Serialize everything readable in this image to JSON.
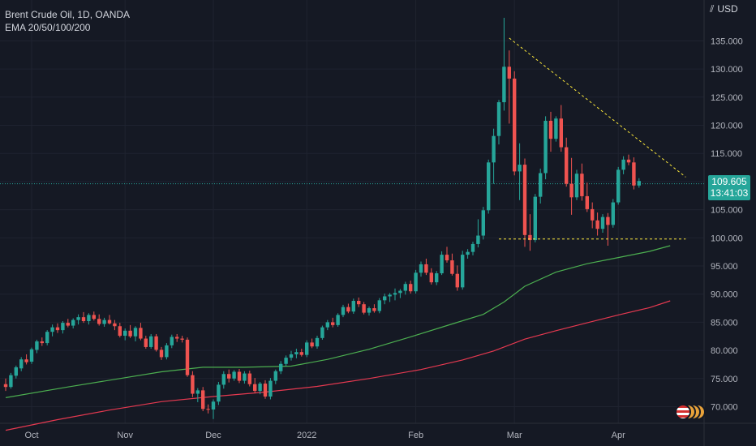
{
  "legend": {
    "symbol_line": "Brent Crude Oil, 1D, OANDA",
    "indicator_line": "EMA 20/50/100/200"
  },
  "currency_label": "USD",
  "price_tag": {
    "price": "109.605",
    "countdown": "13:41:03"
  },
  "colors": {
    "background": "#151924",
    "up": "#26a69a",
    "down": "#ef5350",
    "ema_green": "#4caf50",
    "ema_red": "#e53950",
    "trendline": "#ffeb3b",
    "grid": "#1f2330",
    "text": "#b2b5be"
  },
  "chart_data": {
    "type": "candlestick",
    "title": "Brent Crude Oil, 1D, OANDA",
    "ylim": [
      67.5,
      140
    ],
    "y_ticks": [
      "70.000",
      "75.000",
      "80.000",
      "85.000",
      "90.000",
      "95.000",
      "100.000",
      "105.000",
      "110.000",
      "115.000",
      "120.000",
      "125.000",
      "130.000",
      "135.000"
    ],
    "x_ticks": [
      "Oct",
      "Nov",
      "Dec",
      "2022",
      "Feb",
      "Mar",
      "Apr"
    ],
    "x_tick_index": [
      5,
      23,
      40,
      58,
      79,
      98,
      118
    ],
    "ohlc": [
      [
        74.0,
        75.0,
        72.8,
        73.5
      ],
      [
        73.5,
        76.0,
        73.2,
        75.6
      ],
      [
        75.5,
        77.3,
        75.0,
        77.0
      ],
      [
        76.8,
        78.8,
        76.3,
        78.4
      ],
      [
        78.4,
        79.3,
        77.5,
        77.9
      ],
      [
        78.0,
        80.5,
        77.6,
        80.2
      ],
      [
        80.1,
        81.9,
        79.5,
        81.6
      ],
      [
        81.6,
        82.3,
        80.8,
        81.3
      ],
      [
        81.3,
        83.6,
        80.9,
        83.3
      ],
      [
        83.3,
        84.6,
        82.5,
        84.1
      ],
      [
        84.1,
        84.8,
        83.1,
        83.6
      ],
      [
        83.6,
        85.2,
        83.0,
        84.9
      ],
      [
        84.9,
        85.6,
        84.1,
        84.4
      ],
      [
        84.4,
        85.7,
        83.9,
        85.4
      ],
      [
        85.4,
        86.4,
        84.6,
        85.9
      ],
      [
        85.9,
        86.8,
        84.9,
        85.2
      ],
      [
        85.2,
        86.6,
        84.6,
        86.3
      ],
      [
        86.3,
        86.9,
        85.3,
        85.6
      ],
      [
        85.6,
        86.4,
        84.4,
        84.7
      ],
      [
        84.7,
        85.8,
        84.2,
        85.4
      ],
      [
        85.4,
        86.3,
        84.6,
        84.8
      ],
      [
        84.8,
        85.4,
        83.6,
        84.3
      ],
      [
        84.3,
        84.9,
        82.3,
        82.6
      ],
      [
        82.6,
        83.9,
        81.8,
        83.5
      ],
      [
        83.5,
        84.5,
        82.2,
        82.5
      ],
      [
        82.5,
        84.3,
        81.6,
        84.0
      ],
      [
        84.0,
        84.9,
        81.8,
        82.1
      ],
      [
        82.1,
        82.6,
        80.3,
        80.6
      ],
      [
        80.6,
        82.9,
        80.3,
        82.5
      ],
      [
        82.5,
        82.9,
        79.8,
        80.1
      ],
      [
        80.1,
        80.6,
        78.3,
        78.8
      ],
      [
        78.8,
        81.3,
        78.4,
        80.9
      ],
      [
        80.9,
        82.8,
        80.4,
        82.4
      ],
      [
        82.4,
        82.9,
        81.5,
        82.1
      ],
      [
        82.1,
        82.6,
        81.4,
        81.9
      ],
      [
        81.9,
        82.3,
        75.3,
        75.6
      ],
      [
        75.6,
        76.3,
        71.7,
        72.3
      ],
      [
        72.3,
        73.3,
        70.8,
        72.9
      ],
      [
        72.9,
        73.5,
        69.2,
        69.6
      ],
      [
        69.6,
        70.4,
        68.8,
        69.5
      ],
      [
        69.5,
        71.3,
        67.8,
        70.9
      ],
      [
        70.9,
        74.4,
        70.3,
        73.9
      ],
      [
        73.9,
        76.3,
        73.2,
        75.8
      ],
      [
        75.8,
        76.6,
        74.3,
        75.0
      ],
      [
        75.0,
        76.5,
        74.6,
        76.2
      ],
      [
        76.2,
        76.7,
        74.2,
        74.6
      ],
      [
        74.6,
        76.3,
        74.1,
        75.9
      ],
      [
        75.9,
        76.4,
        73.6,
        74.0
      ],
      [
        74.0,
        75.1,
        72.4,
        72.8
      ],
      [
        72.8,
        74.4,
        72.2,
        74.1
      ],
      [
        74.1,
        74.7,
        71.4,
        71.8
      ],
      [
        71.8,
        75.1,
        71.3,
        74.6
      ],
      [
        74.6,
        76.6,
        74.0,
        76.3
      ],
      [
        76.3,
        78.1,
        75.8,
        77.6
      ],
      [
        77.6,
        79.1,
        77.2,
        78.7
      ],
      [
        78.7,
        79.9,
        78.2,
        79.3
      ],
      [
        79.3,
        80.3,
        78.6,
        79.7
      ],
      [
        79.7,
        80.3,
        78.9,
        79.2
      ],
      [
        79.2,
        81.8,
        78.8,
        81.4
      ],
      [
        81.4,
        82.1,
        80.4,
        80.7
      ],
      [
        80.7,
        82.6,
        80.3,
        82.2
      ],
      [
        82.2,
        84.4,
        81.9,
        84.1
      ],
      [
        84.1,
        85.4,
        83.6,
        85.0
      ],
      [
        85.0,
        85.8,
        84.1,
        84.5
      ],
      [
        84.5,
        86.6,
        84.2,
        86.3
      ],
      [
        86.3,
        88.1,
        85.9,
        87.7
      ],
      [
        87.7,
        88.3,
        86.6,
        86.9
      ],
      [
        86.9,
        89.2,
        86.5,
        88.8
      ],
      [
        88.8,
        89.4,
        87.7,
        88.2
      ],
      [
        88.2,
        88.6,
        86.4,
        86.7
      ],
      [
        86.7,
        87.8,
        86.2,
        87.5
      ],
      [
        87.5,
        88.2,
        86.7,
        87.0
      ],
      [
        87.0,
        89.3,
        86.6,
        88.9
      ],
      [
        88.9,
        90.1,
        88.2,
        89.6
      ],
      [
        89.6,
        90.2,
        88.6,
        89.9
      ],
      [
        89.9,
        91.0,
        88.9,
        90.2
      ],
      [
        90.2,
        90.9,
        89.3,
        90.6
      ],
      [
        90.6,
        92.2,
        89.9,
        91.8
      ],
      [
        91.8,
        92.4,
        90.1,
        90.5
      ],
      [
        90.5,
        94.3,
        90.1,
        93.8
      ],
      [
        93.8,
        95.8,
        93.1,
        95.3
      ],
      [
        95.3,
        96.3,
        93.4,
        93.8
      ],
      [
        93.8,
        94.6,
        91.7,
        92.1
      ],
      [
        92.1,
        94.1,
        91.6,
        93.7
      ],
      [
        93.7,
        97.6,
        93.4,
        97.0
      ],
      [
        97.0,
        98.4,
        95.6,
        96.0
      ],
      [
        96.0,
        97.2,
        93.3,
        93.6
      ],
      [
        93.6,
        95.1,
        90.6,
        91.2
      ],
      [
        91.2,
        97.7,
        90.8,
        97.0
      ],
      [
        97.0,
        98.0,
        96.3,
        97.5
      ],
      [
        97.5,
        99.3,
        96.9,
        98.9
      ],
      [
        98.9,
        103.3,
        98.3,
        100.4
      ],
      [
        100.4,
        105.5,
        99.7,
        104.9
      ],
      [
        104.9,
        113.9,
        104.3,
        113.4
      ],
      [
        113.4,
        119.4,
        109.6,
        118.1
      ],
      [
        118.1,
        124.5,
        116.6,
        124.1
      ],
      [
        124.1,
        139.1,
        122.6,
        130.4
      ],
      [
        130.4,
        133.3,
        120.3,
        128.3
      ],
      [
        128.3,
        129.6,
        111.1,
        111.8
      ],
      [
        111.8,
        116.8,
        106.7,
        113.0
      ],
      [
        113.0,
        114.1,
        98.4,
        100.5
      ],
      [
        100.5,
        104.2,
        97.7,
        99.6
      ],
      [
        99.6,
        107.8,
        99.2,
        107.3
      ],
      [
        107.3,
        112.3,
        106.1,
        111.5
      ],
      [
        111.5,
        121.6,
        110.4,
        120.8
      ],
      [
        120.8,
        122.4,
        115.3,
        117.6
      ],
      [
        117.6,
        121.6,
        117.1,
        121.2
      ],
      [
        121.2,
        123.6,
        115.3,
        116.1
      ],
      [
        116.1,
        117.8,
        109.1,
        109.6
      ],
      [
        109.6,
        114.2,
        104.1,
        107.2
      ],
      [
        107.2,
        112.1,
        106.7,
        111.4
      ],
      [
        111.4,
        113.2,
        106.6,
        107.4
      ],
      [
        107.4,
        109.8,
        104.6,
        105.1
      ],
      [
        105.1,
        106.3,
        101.7,
        103.1
      ],
      [
        103.1,
        104.5,
        100.4,
        101.6
      ],
      [
        101.6,
        104.2,
        100.9,
        103.7
      ],
      [
        103.7,
        104.4,
        98.6,
        102.3
      ],
      [
        102.3,
        106.9,
        101.8,
        106.3
      ],
      [
        106.3,
        112.6,
        105.9,
        112.1
      ],
      [
        112.1,
        114.5,
        111.3,
        113.9
      ],
      [
        113.9,
        114.8,
        112.9,
        113.4
      ],
      [
        113.4,
        114.3,
        108.6,
        109.3
      ],
      [
        109.3,
        110.6,
        108.9,
        110.1
      ]
    ],
    "ema_green": [
      [
        0,
        71.6
      ],
      [
        12,
        73.5
      ],
      [
        22,
        75.0
      ],
      [
        30,
        76.2
      ],
      [
        38,
        77.0
      ],
      [
        46,
        77.0
      ],
      [
        55,
        77.2
      ],
      [
        62,
        78.4
      ],
      [
        70,
        80.2
      ],
      [
        78,
        82.4
      ],
      [
        86,
        84.7
      ],
      [
        92,
        86.4
      ],
      [
        96,
        88.6
      ],
      [
        100,
        91.4
      ],
      [
        106,
        93.9
      ],
      [
        112,
        95.4
      ],
      [
        118,
        96.5
      ],
      [
        124,
        97.6
      ],
      [
        128,
        98.6
      ]
    ],
    "ema_red": [
      [
        0,
        65.8
      ],
      [
        10,
        67.7
      ],
      [
        20,
        69.4
      ],
      [
        30,
        70.9
      ],
      [
        40,
        71.8
      ],
      [
        50,
        72.6
      ],
      [
        60,
        73.6
      ],
      [
        70,
        75.0
      ],
      [
        80,
        76.6
      ],
      [
        88,
        78.3
      ],
      [
        94,
        79.9
      ],
      [
        100,
        82.0
      ],
      [
        106,
        83.5
      ],
      [
        112,
        84.9
      ],
      [
        118,
        86.3
      ],
      [
        124,
        87.6
      ],
      [
        128,
        88.8
      ]
    ],
    "descending_trendline": [
      [
        97,
        135.5
      ],
      [
        131,
        110.8
      ]
    ],
    "support_line": [
      [
        95,
        99.8
      ],
      [
        131,
        99.8
      ]
    ],
    "last_price_line": 109.605
  }
}
